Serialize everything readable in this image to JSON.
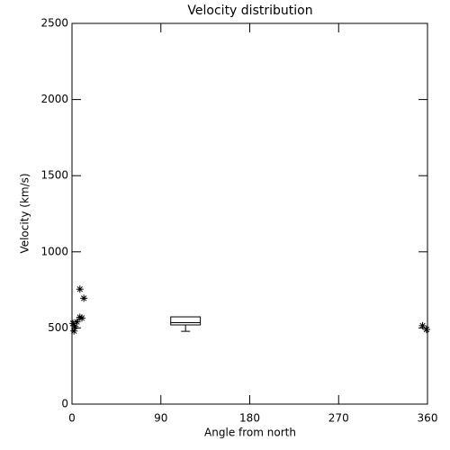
{
  "chart_data": {
    "type": "scatter",
    "title": "Velocity distribution",
    "x_label": "Angle from north",
    "y_label": "Velocity (km/s)",
    "xlim": [
      0,
      360
    ],
    "xticks": [
      0,
      90,
      180,
      270,
      360
    ],
    "ylim": [
      0,
      2500
    ],
    "yticks": [
      0,
      500,
      1000,
      1500,
      2000,
      2500
    ],
    "color": "#000000",
    "x": [
      1,
      2,
      3,
      5,
      8,
      10,
      8,
      12,
      355,
      359
    ],
    "y": [
      530,
      480,
      510,
      540,
      570,
      565,
      755,
      695,
      515,
      490
    ],
    "box": {
      "x": [
        100,
        130
      ],
      "whislo": 478,
      "q1": 520,
      "median": 535,
      "q3": 573
    }
  }
}
